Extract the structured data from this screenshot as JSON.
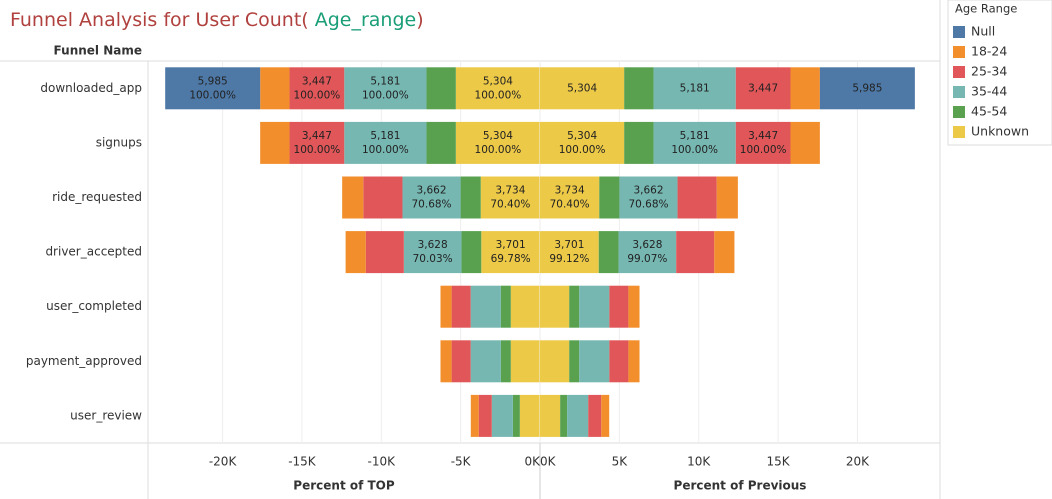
{
  "chart_data": {
    "type": "funnel",
    "title": "Funnel Analysis for User Count(",
    "title_field": "Age_range",
    "title_end": ")",
    "row_header": "Funnel Name",
    "legend_title": "Age Range",
    "grid": true,
    "categories": [
      "downloaded_app",
      "signups",
      "ride_requested",
      "driver_accepted",
      "user_completed",
      "payment_approved",
      "user_review"
    ],
    "panes": [
      {
        "side": "left",
        "xlabel": "Percent of TOP",
        "pct": "pct_top",
        "xlim": [
          -24700,
          0
        ],
        "xticks": [
          {
            "value": -20000,
            "label": "-20K"
          },
          {
            "value": -15000,
            "label": "-15K"
          },
          {
            "value": -10000,
            "label": "-10K"
          },
          {
            "value": -5000,
            "label": "-5K"
          },
          {
            "value": 0,
            "label": "0K"
          }
        ]
      },
      {
        "side": "right",
        "xlabel": "Percent of Previous",
        "pct": "pct_prev",
        "xlim": [
          0,
          25200
        ],
        "xticks": [
          {
            "value": 0,
            "label": "0K"
          },
          {
            "value": 5000,
            "label": "5K"
          },
          {
            "value": 10000,
            "label": "10K"
          },
          {
            "value": 15000,
            "label": "15K"
          },
          {
            "value": 20000,
            "label": "20K"
          }
        ]
      }
    ],
    "series": [
      {
        "name": "Null",
        "color": "#4e79a7",
        "values": [
          5985,
          null,
          null,
          null,
          null,
          null,
          null
        ],
        "value_labels": [
          "5,985",
          null,
          null,
          null,
          null,
          null,
          null
        ],
        "pct_top": [
          100,
          null,
          null,
          null,
          null,
          null,
          null
        ],
        "pct_top_labels": [
          "100.00%",
          null,
          null,
          null,
          null,
          null,
          null
        ],
        "pct_prev": [
          null,
          null,
          null,
          null,
          null,
          null,
          null
        ],
        "pct_prev_labels": [
          null,
          null,
          null,
          null,
          null,
          null,
          null
        ]
      },
      {
        "name": "18-24",
        "color": "#f28e2b",
        "values": [
          1850,
          1850,
          1330,
          1270,
          700,
          700,
          500
        ],
        "value_labels": [
          null,
          null,
          null,
          null,
          null,
          null,
          null
        ],
        "pct_top": [
          null,
          null,
          null,
          null,
          null,
          null,
          null
        ],
        "pct_top_labels": [
          null,
          null,
          null,
          null,
          null,
          null,
          null
        ],
        "pct_prev": [
          null,
          null,
          null,
          null,
          null,
          null,
          null
        ],
        "pct_prev_labels": [
          null,
          null,
          null,
          null,
          null,
          null,
          null
        ]
      },
      {
        "name": "25-34",
        "color": "#e15759",
        "values": [
          3447,
          3447,
          2470,
          2400,
          1200,
          1200,
          820
        ],
        "value_labels": [
          "3,447",
          "3,447",
          null,
          null,
          null,
          null,
          null
        ],
        "pct_top": [
          100,
          100,
          null,
          null,
          null,
          null,
          null
        ],
        "pct_top_labels": [
          "100.00%",
          "100.00%",
          null,
          null,
          null,
          null,
          null
        ],
        "pct_prev": [
          null,
          100,
          null,
          null,
          null,
          null,
          null
        ],
        "pct_prev_labels": [
          null,
          "100.00%",
          null,
          null,
          null,
          null,
          null
        ]
      },
      {
        "name": "35-44",
        "color": "#76b7b2",
        "values": [
          5181,
          5181,
          3662,
          3628,
          1900,
          1900,
          1330
        ],
        "value_labels": [
          "5,181",
          "5,181",
          "3,662",
          "3,628",
          null,
          null,
          null
        ],
        "pct_top": [
          100,
          100,
          70.68,
          70.03,
          null,
          null,
          null
        ],
        "pct_top_labels": [
          "100.00%",
          "100.00%",
          "70.68%",
          "70.03%",
          null,
          null,
          null
        ],
        "pct_prev": [
          null,
          100,
          70.68,
          99.07,
          null,
          null,
          null
        ],
        "pct_prev_labels": [
          null,
          "100.00%",
          "70.68%",
          "99.07%",
          null,
          null,
          null
        ]
      },
      {
        "name": "45-54",
        "color": "#59a14f",
        "values": [
          1850,
          1850,
          1270,
          1250,
          630,
          630,
          440
        ],
        "value_labels": [
          null,
          null,
          null,
          null,
          null,
          null,
          null
        ],
        "pct_top": [
          null,
          null,
          null,
          null,
          null,
          null,
          null
        ],
        "pct_top_labels": [
          null,
          null,
          null,
          null,
          null,
          null,
          null
        ],
        "pct_prev": [
          null,
          null,
          null,
          null,
          null,
          null,
          null
        ],
        "pct_prev_labels": [
          null,
          null,
          null,
          null,
          null,
          null,
          null
        ]
      },
      {
        "name": "Unknown",
        "color": "#edc948",
        "values": [
          5304,
          5304,
          3734,
          3701,
          1840,
          1840,
          1270
        ],
        "value_labels": [
          "5,304",
          "5,304",
          "3,734",
          "3,701",
          null,
          null,
          null
        ],
        "pct_top": [
          100,
          100,
          70.4,
          69.78,
          null,
          null,
          null
        ],
        "pct_top_labels": [
          "100.00%",
          "100.00%",
          "70.40%",
          "69.78%",
          null,
          null,
          null
        ],
        "pct_prev": [
          null,
          100,
          70.4,
          99.12,
          null,
          null,
          null
        ],
        "pct_prev_labels": [
          null,
          "100.00%",
          "70.40%",
          "99.12%",
          null,
          null,
          null
        ]
      }
    ]
  }
}
